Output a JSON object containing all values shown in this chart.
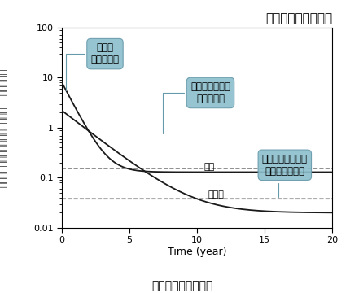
{
  "title": "コナラ・マツ混交林",
  "xlabel": "Time (year)",
  "xlabel2": "事故後の年数（年）",
  "ylabel_line1": "事故直後の",
  "ylabel_line2": "総セシウム量に対する比率（％）",
  "xlim": [
    0,
    20
  ],
  "ylim_log": [
    0.01,
    100
  ],
  "yticks": [
    0.01,
    0.1,
    1,
    10,
    100
  ],
  "ytick_labels": [
    "0.01",
    "0.1",
    "1",
    "10",
    "100"
  ],
  "xticks": [
    0,
    5,
    10,
    15,
    20
  ],
  "bubble_color": "#8bbfcc",
  "bubble_edge": "#6699aa",
  "bubble1_text": "初期は\n大きく排出",
  "bubble2_text": "森林内の循環が\n定常状態に",
  "bubble3_text": "コナラは吸収量が\n排出量を上回る",
  "label_matsu": "マツ",
  "label_konara": "コナラ",
  "bg_color": "#ffffff",
  "line_color": "#1a1a1a",
  "matsu_solid_a": 8.0,
  "matsu_solid_k": 1.2,
  "matsu_solid_c": 0.13,
  "konara_solid_a": 2.2,
  "konara_solid_k": 0.48,
  "konara_solid_c": 0.02,
  "dashed_matsu_level": 0.155,
  "dashed_konara_level": 0.038
}
